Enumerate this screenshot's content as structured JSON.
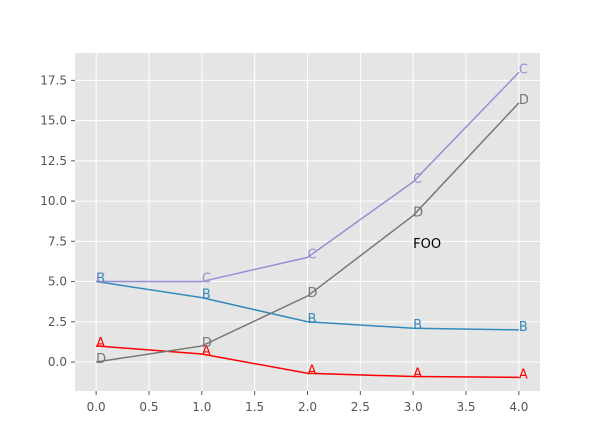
{
  "chart_data": {
    "type": "line",
    "x": [
      0,
      1,
      2,
      3,
      4
    ],
    "xlim": [
      -0.2,
      4.2
    ],
    "ylim": [
      -1.8,
      19.2
    ],
    "xticks": [
      0.0,
      0.5,
      1.0,
      1.5,
      2.0,
      2.5,
      3.0,
      3.5,
      4.0
    ],
    "yticks": [
      0.0,
      2.5,
      5.0,
      7.5,
      10.0,
      12.5,
      15.0,
      17.5
    ],
    "grid": true,
    "background": "#e5e5e5",
    "series": [
      {
        "label": "A",
        "color": "#ff0000",
        "values": [
          1.0,
          0.5,
          -0.7,
          -0.9,
          -0.95
        ]
      },
      {
        "label": "B",
        "color": "#348abd",
        "values": [
          5.0,
          4.0,
          2.5,
          2.1,
          2.0
        ]
      },
      {
        "label": "C",
        "color": "#988ed5",
        "values": [
          5.0,
          5.0,
          6.5,
          11.2,
          18.0
        ]
      },
      {
        "label": "D",
        "color": "#777777",
        "values": [
          0.0,
          1.0,
          4.1,
          9.1,
          16.1
        ]
      }
    ],
    "annotations": [
      {
        "text": "FOO",
        "x": 3.0,
        "y": 7.1
      }
    ]
  }
}
